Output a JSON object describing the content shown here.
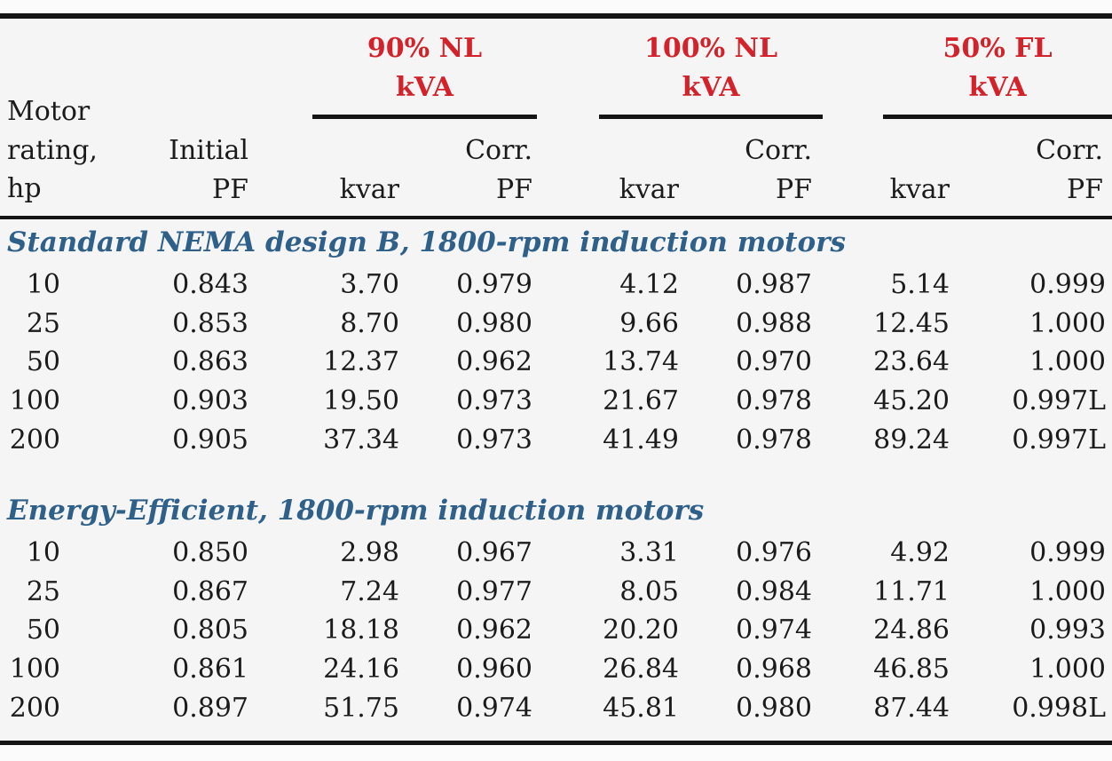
{
  "header": {
    "motor_label_lines": [
      "Motor",
      "rating,",
      "hp"
    ],
    "initial_label_lines": [
      "Initial",
      "PF"
    ],
    "groups": [
      {
        "title_lines": [
          "90% NL",
          "kVA"
        ],
        "kvar_label": "kvar",
        "corr_label_lines": [
          "Corr.",
          "PF"
        ]
      },
      {
        "title_lines": [
          "100% NL",
          "kVA"
        ],
        "kvar_label": "kvar",
        "corr_label_lines": [
          "Corr.",
          "PF"
        ]
      },
      {
        "title_lines": [
          "50% FL",
          "kVA"
        ],
        "kvar_label": "kvar",
        "corr_label_lines": [
          "Corr.",
          "PF"
        ]
      }
    ]
  },
  "sections": [
    {
      "title": "Standard NEMA design B, 1800-rpm induction motors",
      "rows": [
        [
          "10",
          "0.843",
          "3.70",
          "0.979",
          "4.12",
          "0.987",
          "5.14",
          "0.999"
        ],
        [
          "25",
          "0.853",
          "8.70",
          "0.980",
          "9.66",
          "0.988",
          "12.45",
          "1.000"
        ],
        [
          "50",
          "0.863",
          "12.37",
          "0.962",
          "13.74",
          "0.970",
          "23.64",
          "1.000"
        ],
        [
          "100",
          "0.903",
          "19.50",
          "0.973",
          "21.67",
          "0.978",
          "45.20",
          "0.997L"
        ],
        [
          "200",
          "0.905",
          "37.34",
          "0.973",
          "41.49",
          "0.978",
          "89.24",
          "0.997L"
        ]
      ]
    },
    {
      "title": "Energy-Efficient, 1800-rpm induction motors",
      "rows": [
        [
          "10",
          "0.850",
          "2.98",
          "0.967",
          "3.31",
          "0.976",
          "4.92",
          "0.999"
        ],
        [
          "25",
          "0.867",
          "7.24",
          "0.977",
          "8.05",
          "0.984",
          "11.71",
          "1.000"
        ],
        [
          "50",
          "0.805",
          "18.18",
          "0.962",
          "20.20",
          "0.974",
          "24.86",
          "0.993"
        ],
        [
          "100",
          "0.861",
          "24.16",
          "0.960",
          "26.84",
          "0.968",
          "46.85",
          "1.000"
        ],
        [
          "200",
          "0.897",
          "51.75",
          "0.974",
          "45.81",
          "0.980",
          "87.44",
          "0.998L"
        ]
      ]
    }
  ],
  "colors": {
    "accent_red": "#d3222a",
    "accent_blue": "#2e6089",
    "text": "#1b1b1b",
    "rule": "#141414",
    "background": "#f5f5f6"
  }
}
